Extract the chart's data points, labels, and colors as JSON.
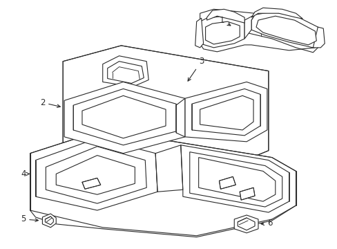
{
  "background_color": "#ffffff",
  "line_color": "#2a2a2a",
  "line_width": 0.8,
  "fig_width": 4.89,
  "fig_height": 3.6,
  "dpi": 100,
  "label_fontsize": 8.5
}
